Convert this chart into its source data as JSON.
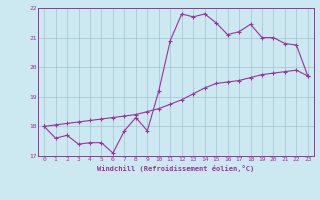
{
  "xlabel": "Windchill (Refroidissement éolien,°C)",
  "bg_color": "#cce8f0",
  "line_color": "#993399",
  "grid_color": "#99bbcc",
  "xlim": [
    -0.5,
    23.5
  ],
  "ylim": [
    17.0,
    22.0
  ],
  "xticks": [
    0,
    1,
    2,
    3,
    4,
    5,
    6,
    7,
    8,
    9,
    10,
    11,
    12,
    13,
    14,
    15,
    16,
    17,
    18,
    19,
    20,
    21,
    22,
    23
  ],
  "yticks": [
    17,
    18,
    19,
    20,
    21,
    22
  ],
  "hours": [
    0,
    1,
    2,
    3,
    4,
    5,
    6,
    7,
    8,
    9,
    10,
    11,
    12,
    13,
    14,
    15,
    16,
    17,
    18,
    19,
    20,
    21,
    22,
    23
  ],
  "temp_line": [
    18.0,
    17.6,
    17.7,
    17.4,
    17.45,
    17.45,
    17.1,
    17.85,
    18.3,
    17.85,
    19.2,
    20.9,
    21.8,
    21.7,
    21.8,
    21.5,
    21.1,
    21.2,
    21.45,
    21.0,
    21.0,
    20.8,
    20.75,
    19.7
  ],
  "linear_line": [
    18.0,
    18.05,
    18.1,
    18.15,
    18.2,
    18.25,
    18.3,
    18.35,
    18.4,
    18.5,
    18.6,
    18.75,
    18.9,
    19.1,
    19.3,
    19.45,
    19.5,
    19.55,
    19.65,
    19.75,
    19.8,
    19.85,
    19.9,
    19.7
  ]
}
